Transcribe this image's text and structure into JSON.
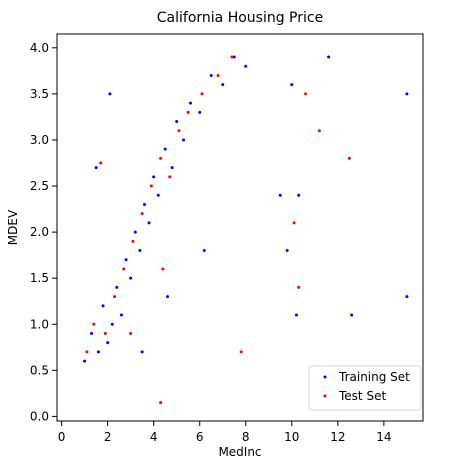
{
  "chart_data": {
    "type": "scatter",
    "title": "California Housing Price",
    "xlabel": "MedInc",
    "ylabel": "MDEV",
    "xlim": [
      -0.2,
      15.7
    ],
    "ylim": [
      -0.05,
      4.15
    ],
    "xticks": [
      0,
      2,
      4,
      6,
      8,
      10,
      12,
      14
    ],
    "yticks": [
      0.0,
      0.5,
      1.0,
      1.5,
      2.0,
      2.5,
      3.0,
      3.5,
      4.0
    ],
    "xtick_labels": [
      "0",
      "2",
      "4",
      "6",
      "8",
      "10",
      "12",
      "14"
    ],
    "ytick_labels": [
      "0.0",
      "0.5",
      "1.0",
      "1.5",
      "2.0",
      "2.5",
      "3.0",
      "3.5",
      "4.0"
    ],
    "grid": false,
    "legend_position": "lower right",
    "series": [
      {
        "name": "Training Set",
        "color": "#0000ff",
        "points": [
          [
            1.0,
            0.6
          ],
          [
            1.3,
            0.9
          ],
          [
            1.6,
            0.7
          ],
          [
            1.8,
            1.2
          ],
          [
            2.0,
            0.8
          ],
          [
            2.2,
            1.0
          ],
          [
            2.4,
            1.4
          ],
          [
            2.6,
            1.1
          ],
          [
            2.8,
            1.7
          ],
          [
            3.0,
            1.5
          ],
          [
            3.2,
            2.0
          ],
          [
            3.4,
            1.8
          ],
          [
            3.6,
            2.3
          ],
          [
            3.8,
            2.1
          ],
          [
            4.0,
            2.6
          ],
          [
            4.2,
            2.4
          ],
          [
            4.5,
            2.9
          ],
          [
            4.8,
            2.7
          ],
          [
            5.0,
            3.2
          ],
          [
            5.3,
            3.0
          ],
          [
            5.6,
            3.4
          ],
          [
            6.0,
            3.3
          ],
          [
            6.5,
            3.7
          ],
          [
            7.0,
            3.6
          ],
          [
            7.5,
            3.9
          ],
          [
            8.0,
            3.8
          ],
          [
            2.1,
            3.5
          ],
          [
            1.5,
            2.7
          ],
          [
            3.5,
            0.7
          ],
          [
            4.6,
            1.3
          ],
          [
            6.2,
            1.8
          ],
          [
            9.5,
            2.4
          ],
          [
            10.3,
            2.4
          ],
          [
            10.0,
            3.6
          ],
          [
            11.6,
            3.9
          ],
          [
            15.0,
            3.5
          ],
          [
            15.0,
            1.3
          ],
          [
            12.6,
            1.1
          ],
          [
            10.2,
            1.1
          ],
          [
            9.8,
            1.8
          ]
        ]
      },
      {
        "name": "Test Set",
        "color": "#ff0000",
        "points": [
          [
            1.1,
            0.7
          ],
          [
            1.4,
            1.0
          ],
          [
            1.9,
            0.9
          ],
          [
            2.3,
            1.3
          ],
          [
            2.7,
            1.6
          ],
          [
            3.1,
            1.9
          ],
          [
            3.5,
            2.2
          ],
          [
            3.9,
            2.5
          ],
          [
            4.3,
            2.8
          ],
          [
            4.7,
            2.6
          ],
          [
            5.1,
            3.1
          ],
          [
            5.5,
            3.3
          ],
          [
            6.1,
            3.5
          ],
          [
            6.8,
            3.7
          ],
          [
            7.4,
            3.9
          ],
          [
            1.7,
            2.75
          ],
          [
            3.0,
            0.9
          ],
          [
            4.4,
            1.6
          ],
          [
            7.8,
            0.7
          ],
          [
            10.3,
            1.4
          ],
          [
            10.1,
            2.1
          ],
          [
            10.6,
            3.5
          ],
          [
            11.2,
            3.1
          ],
          [
            12.5,
            2.8
          ],
          [
            4.3,
            0.15
          ]
        ]
      }
    ]
  }
}
